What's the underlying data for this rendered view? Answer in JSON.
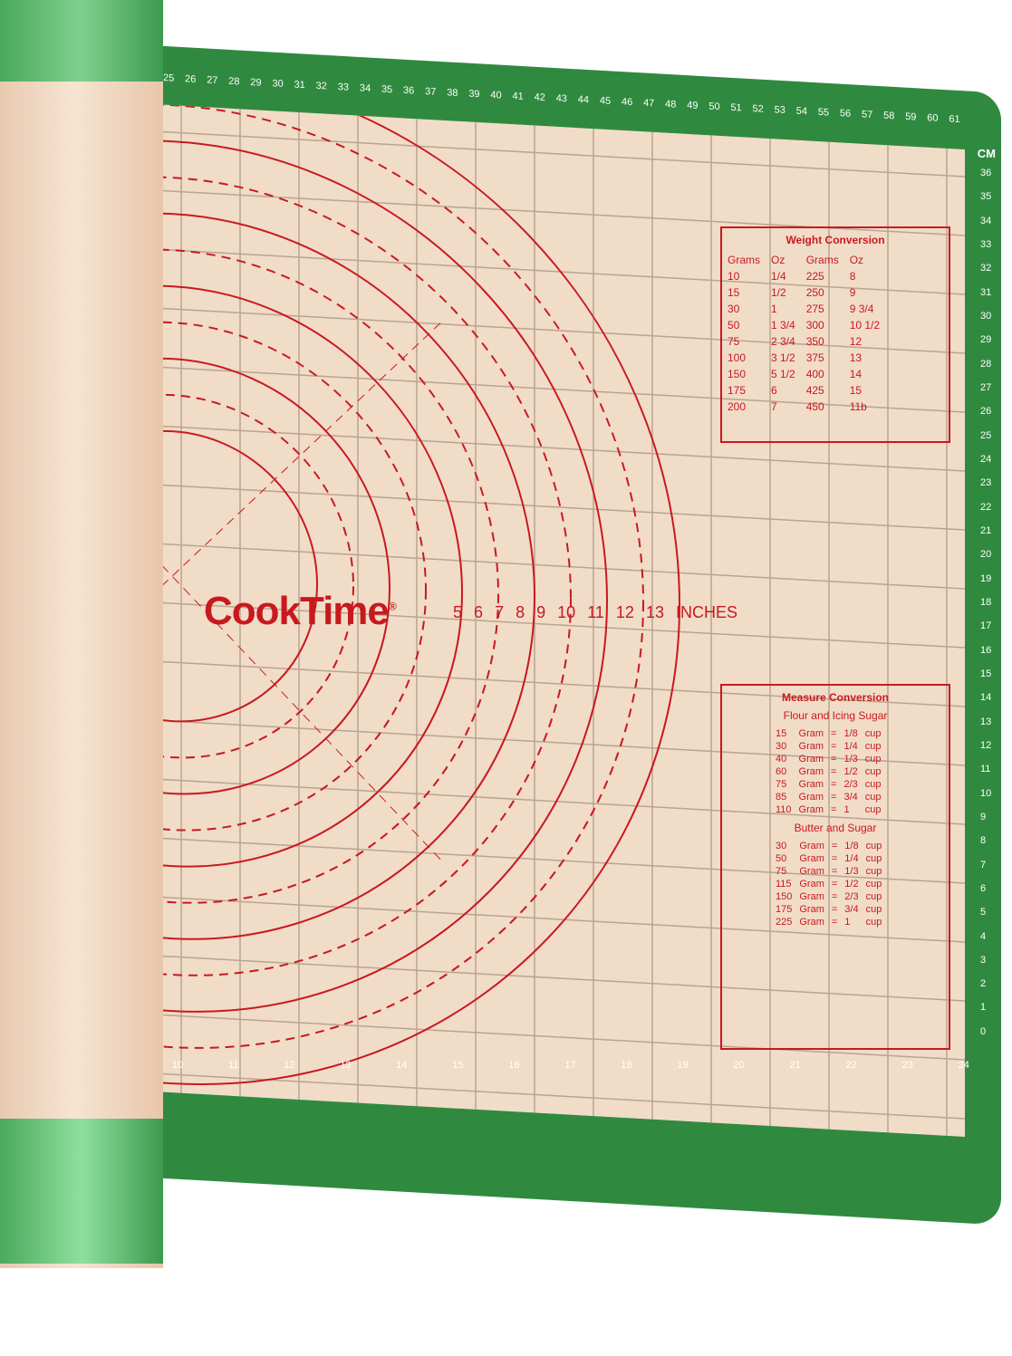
{
  "brand": {
    "name": "CookTime",
    "mark": "®"
  },
  "inches_scale": {
    "numbers": [
      "5",
      "6",
      "7",
      "8",
      "9",
      "10",
      "11",
      "12",
      "13"
    ],
    "unit": "INCHES"
  },
  "ruler": {
    "top": [
      "25",
      "26",
      "27",
      "28",
      "29",
      "30",
      "31",
      "32",
      "33",
      "34",
      "35",
      "36",
      "37",
      "38",
      "39",
      "40",
      "41",
      "42",
      "43",
      "44",
      "45",
      "46",
      "47",
      "48",
      "49",
      "50",
      "51",
      "52",
      "53",
      "54",
      "55",
      "56",
      "57",
      "58",
      "59",
      "60",
      "61"
    ],
    "right": [
      "36",
      "35",
      "34",
      "33",
      "32",
      "31",
      "30",
      "29",
      "28",
      "27",
      "26",
      "25",
      "24",
      "23",
      "22",
      "21",
      "20",
      "19",
      "18",
      "17",
      "16",
      "15",
      "14",
      "13",
      "12",
      "11",
      "10",
      "9",
      "8",
      "7",
      "6",
      "5",
      "4",
      "3",
      "2",
      "1",
      "0"
    ],
    "bottom": [
      "10",
      "11",
      "12",
      "13",
      "14",
      "15",
      "16",
      "17",
      "18",
      "19",
      "20",
      "21",
      "22",
      "23",
      "24"
    ],
    "unit": "CM"
  },
  "weight_conversion": {
    "title": "Weight Conversion",
    "headers": [
      "Grams",
      "Oz",
      "Grams",
      "Oz"
    ],
    "rows": [
      [
        "10",
        "1/4",
        "225",
        "8"
      ],
      [
        "15",
        "1/2",
        "250",
        "9"
      ],
      [
        "30",
        "1",
        "275",
        "9 3/4"
      ],
      [
        "50",
        "1 3/4",
        "300",
        "10 1/2"
      ],
      [
        "75",
        "2 3/4",
        "350",
        "12"
      ],
      [
        "100",
        "3 1/2",
        "375",
        "13"
      ],
      [
        "150",
        "5 1/2",
        "400",
        "14"
      ],
      [
        "175",
        "6",
        "425",
        "15"
      ],
      [
        "200",
        "7",
        "450",
        "11b"
      ]
    ]
  },
  "measure_conversion": {
    "title": "Measure Conversion",
    "sections": [
      {
        "title": "Flour and Icing Sugar",
        "rows": [
          [
            "15",
            "Gram",
            "=",
            "1/8",
            "cup"
          ],
          [
            "30",
            "Gram",
            "=",
            "1/4",
            "cup"
          ],
          [
            "40",
            "Gram",
            "=",
            "1/3",
            "cup"
          ],
          [
            "60",
            "Gram",
            "=",
            "1/2",
            "cup"
          ],
          [
            "75",
            "Gram",
            "=",
            "2/3",
            "cup"
          ],
          [
            "85",
            "Gram",
            "=",
            "3/4",
            "cup"
          ],
          [
            "110",
            "Gram",
            "=",
            "1",
            "cup"
          ]
        ]
      },
      {
        "title": "Butter and Sugar",
        "rows": [
          [
            "30",
            "Gram",
            "=",
            "1/8",
            "cup"
          ],
          [
            "50",
            "Gram",
            "=",
            "1/4",
            "cup"
          ],
          [
            "75",
            "Gram",
            "=",
            "1/3",
            "cup"
          ],
          [
            "115",
            "Gram",
            "=",
            "1/2",
            "cup"
          ],
          [
            "150",
            "Gram",
            "=",
            "2/3",
            "cup"
          ],
          [
            "175",
            "Gram",
            "=",
            "3/4",
            "cup"
          ],
          [
            "225",
            "Gram",
            "=",
            "1",
            "cup"
          ]
        ]
      }
    ]
  },
  "colors": {
    "green": "#2f8a3f",
    "beige": "#f1dcc8",
    "red": "#c8191e",
    "roll_green": "#6cc47d"
  }
}
